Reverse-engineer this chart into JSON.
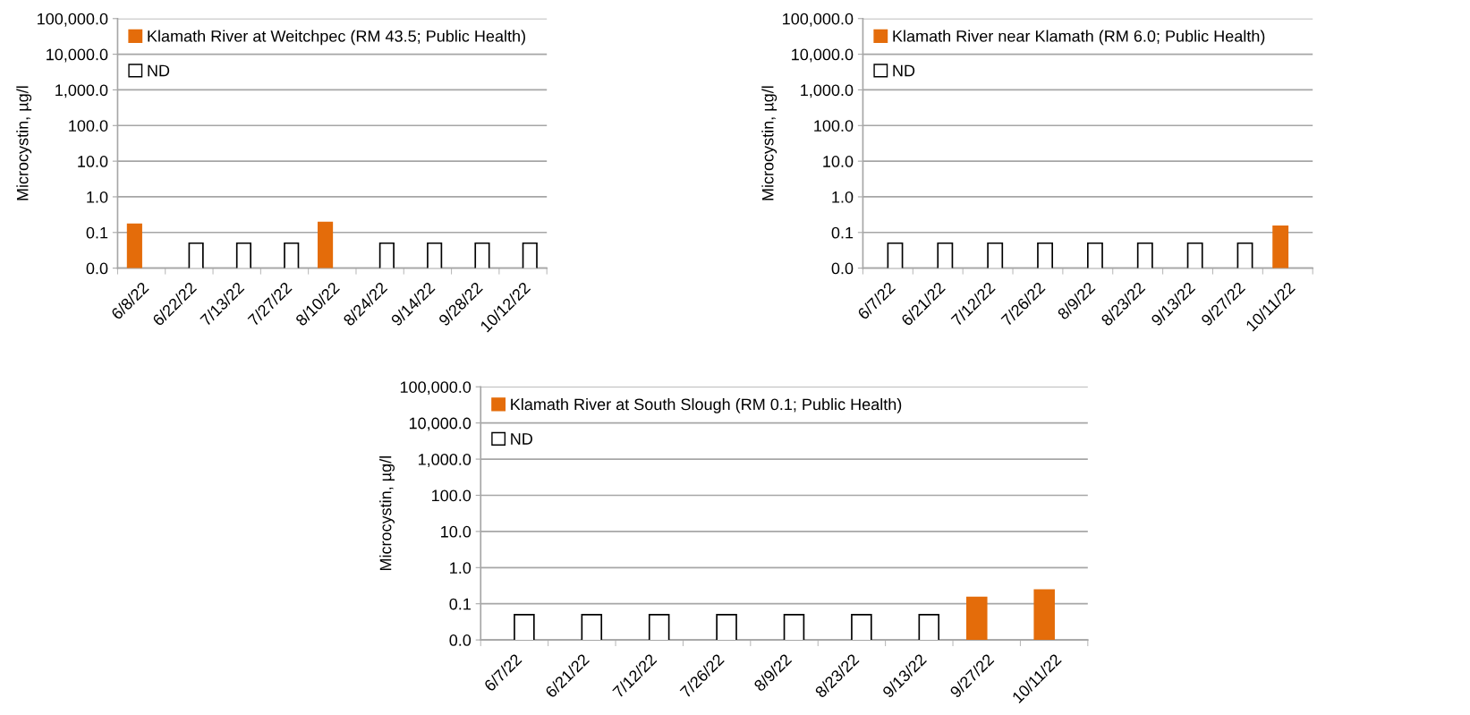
{
  "chart_data": [
    {
      "type": "bar",
      "categories": [
        "6/8/22",
        "6/22/22",
        "7/13/22",
        "7/27/22",
        "8/10/22",
        "8/24/22",
        "9/14/22",
        "9/28/22",
        "10/12/22"
      ],
      "ylabel": "Microcystin, µg/l",
      "log": true,
      "ylim": [
        0.01,
        100000
      ],
      "yticks": [
        {
          "value": 0.01,
          "label": "0.0"
        },
        {
          "value": 0.1,
          "label": "0.1"
        },
        {
          "value": 1,
          "label": "1.0"
        },
        {
          "value": 10,
          "label": "10.0"
        },
        {
          "value": 100,
          "label": "100.0"
        },
        {
          "value": 1000,
          "label": "1,000.0"
        },
        {
          "value": 10000,
          "label": "10,000.0"
        },
        {
          "value": 100000,
          "label": "100,000.0"
        }
      ],
      "grid": "y",
      "legend": "top left",
      "series": [
        {
          "name": "Klamath River at Weitchpec (RM 43.5; Public Health)",
          "color": "#e46c0a",
          "values": [
            0.17,
            null,
            null,
            null,
            0.19,
            null,
            null,
            null,
            null
          ]
        },
        {
          "name": "ND",
          "color": "#ffffff",
          "values": [
            null,
            0.05,
            0.05,
            0.05,
            null,
            0.05,
            0.05,
            0.05,
            0.05
          ]
        }
      ]
    },
    {
      "type": "bar",
      "categories": [
        "6/7/22",
        "6/21/22",
        "7/12/22",
        "7/26/22",
        "8/9/22",
        "8/23/22",
        "9/13/22",
        "9/27/22",
        "10/11/22"
      ],
      "ylabel": "Microcystin, µg/l",
      "log": true,
      "ylim": [
        0.01,
        100000
      ],
      "yticks": [
        {
          "value": 0.01,
          "label": "0.0"
        },
        {
          "value": 0.1,
          "label": "0.1"
        },
        {
          "value": 1,
          "label": "1.0"
        },
        {
          "value": 10,
          "label": "10.0"
        },
        {
          "value": 100,
          "label": "100.0"
        },
        {
          "value": 1000,
          "label": "1,000.0"
        },
        {
          "value": 10000,
          "label": "10,000.0"
        },
        {
          "value": 100000,
          "label": "100,000.0"
        }
      ],
      "grid": "y",
      "legend": "top left",
      "series": [
        {
          "name": "Klamath River near Klamath (RM 6.0; Public Health)",
          "color": "#e46c0a",
          "values": [
            null,
            null,
            null,
            null,
            null,
            null,
            null,
            null,
            0.15
          ]
        },
        {
          "name": "ND",
          "color": "#ffffff",
          "values": [
            0.05,
            0.05,
            0.05,
            0.05,
            0.05,
            0.05,
            0.05,
            0.05,
            null
          ]
        }
      ]
    },
    {
      "type": "bar",
      "categories": [
        "6/7/22",
        "6/21/22",
        "7/12/22",
        "7/26/22",
        "8/9/22",
        "8/23/22",
        "9/13/22",
        "9/27/22",
        "10/11/22"
      ],
      "ylabel": "Microcystin, µg/l",
      "log": true,
      "ylim": [
        0.01,
        100000
      ],
      "yticks": [
        {
          "value": 0.01,
          "label": "0.0"
        },
        {
          "value": 0.1,
          "label": "0.1"
        },
        {
          "value": 1,
          "label": "1.0"
        },
        {
          "value": 10,
          "label": "10.0"
        },
        {
          "value": 100,
          "label": "100.0"
        },
        {
          "value": 1000,
          "label": "1,000.0"
        },
        {
          "value": 10000,
          "label": "10,000.0"
        },
        {
          "value": 100000,
          "label": "100,000.0"
        }
      ],
      "grid": "y",
      "legend": "top left",
      "series": [
        {
          "name": "Klamath River at South Slough (RM 0.1; Public Health)",
          "color": "#e46c0a",
          "values": [
            null,
            null,
            null,
            null,
            null,
            null,
            null,
            0.15,
            0.24
          ]
        },
        {
          "name": "ND",
          "color": "#ffffff",
          "values": [
            0.05,
            0.05,
            0.05,
            0.05,
            0.05,
            0.05,
            0.05,
            null,
            null
          ]
        }
      ]
    }
  ]
}
